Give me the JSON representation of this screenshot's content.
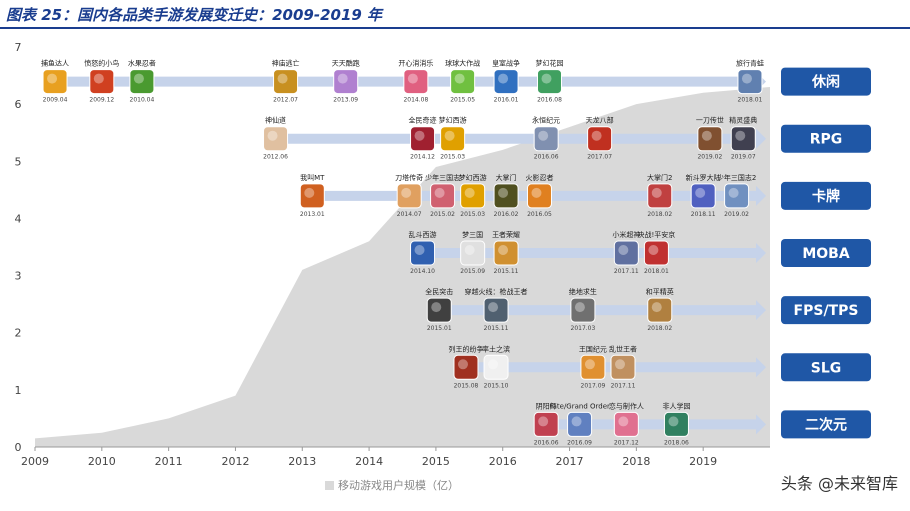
{
  "header": {
    "title": "图表 25：国内各品类手游发展变迁史：2009-2019 年"
  },
  "legend": {
    "label": "移动游戏用户规模（亿）"
  },
  "watermark": {
    "text": "头条 @未来智库"
  },
  "colors": {
    "area": "#d9d9d9",
    "arrow": "#c6d3ea",
    "category_box": "#1f57a6",
    "title": "#1a3d8f"
  },
  "chart_data": {
    "type": "area",
    "title": "图表 25：国内各品类手游发展变迁史：2009-2019 年",
    "legend_position": "bottom",
    "xlim": [
      2009,
      2020
    ],
    "ylim": [
      0,
      7
    ],
    "x_ticks": [
      "2009",
      "2010",
      "2011",
      "2012",
      "2013",
      "2014",
      "2015",
      "2016",
      "2017",
      "2018",
      "2019"
    ],
    "y_ticks": [
      "0",
      "1",
      "2",
      "3",
      "4",
      "5",
      "6",
      "7"
    ],
    "series": [
      {
        "name": "移动游戏用户规模（亿）",
        "x": [
          2009,
          2010,
          2011,
          2012,
          2013,
          2014,
          2015,
          2016,
          2017,
          2018,
          2019,
          2020
        ],
        "y": [
          0.15,
          0.25,
          0.5,
          0.9,
          3.1,
          3.6,
          4.9,
          5.2,
          5.6,
          6.0,
          6.2,
          6.3
        ]
      }
    ],
    "categories": [
      {
        "label": "休闲",
        "y": 6.5,
        "games": [
          {
            "name": "捕鱼达人",
            "date": "2009.04",
            "x": 2009.3,
            "color": "#e8a020"
          },
          {
            "name": "愤怒的小鸟",
            "date": "2009.12",
            "x": 2010.0,
            "color": "#d04020"
          },
          {
            "name": "水果忍者",
            "date": "2010.04",
            "x": 2010.6,
            "color": "#4a9a30"
          },
          {
            "name": "神庙逃亡",
            "date": "2012.07",
            "x": 2012.75,
            "color": "#c89020"
          },
          {
            "name": "天天酷跑",
            "date": "2013.09",
            "x": 2013.65,
            "color": "#b080d0"
          },
          {
            "name": "开心消消乐",
            "date": "2014.08",
            "x": 2014.7,
            "color": "#e06080"
          },
          {
            "name": "球球大作战",
            "date": "2015.05",
            "x": 2015.4,
            "color": "#70c040"
          },
          {
            "name": "皇室战争",
            "date": "2016.01",
            "x": 2016.05,
            "color": "#3070c0"
          },
          {
            "name": "梦幻花园",
            "date": "2016.08",
            "x": 2016.7,
            "color": "#40a060"
          },
          {
            "name": "旅行青蛙",
            "date": "2018.01",
            "x": 2019.7,
            "color": "#6080b0"
          }
        ]
      },
      {
        "label": "RPG",
        "y": 5.5,
        "games": [
          {
            "name": "神仙道",
            "date": "2012.06",
            "x": 2012.6,
            "color": "#e0c0a0"
          },
          {
            "name": "全民奇迹",
            "date": "2014.12",
            "x": 2014.8,
            "color": "#a02030"
          },
          {
            "name": "梦幻西游",
            "date": "2015.03",
            "x": 2015.25,
            "color": "#e0a000"
          },
          {
            "name": "永恒纪元",
            "date": "2016.06",
            "x": 2016.65,
            "color": "#8090b0"
          },
          {
            "name": "天龙八部",
            "date": "2017.07",
            "x": 2017.45,
            "color": "#c03020"
          },
          {
            "name": "一刀传世",
            "date": "2019.02",
            "x": 2019.1,
            "color": "#805030"
          },
          {
            "name": "精灵盛典",
            "date": "2019.07",
            "x": 2019.6,
            "color": "#404050"
          }
        ]
      },
      {
        "label": "卡牌",
        "y": 4.5,
        "games": [
          {
            "name": "我叫MT",
            "date": "2013.01",
            "x": 2013.15,
            "color": "#d06020"
          },
          {
            "name": "刀塔传奇",
            "date": "2014.07",
            "x": 2014.6,
            "color": "#e0a060"
          },
          {
            "name": "少年三国志",
            "date": "2015.02",
            "x": 2015.1,
            "color": "#d06070"
          },
          {
            "name": "梦幻西游",
            "date": "2015.03",
            "x": 2015.55,
            "color": "#e0a000"
          },
          {
            "name": "大掌门",
            "date": "2016.02",
            "x": 2016.05,
            "color": "#505020"
          },
          {
            "name": "火影忍者",
            "date": "2016.05",
            "x": 2016.55,
            "color": "#e08020"
          },
          {
            "name": "大掌门2",
            "date": "2018.02",
            "x": 2018.35,
            "color": "#c04040"
          },
          {
            "name": "新斗罗大陆",
            "date": "2018.11",
            "x": 2019.0,
            "color": "#5060c0"
          },
          {
            "name": "少年三国志2",
            "date": "2019.02",
            "x": 2019.5,
            "color": "#7090c0"
          }
        ]
      },
      {
        "label": "MOBA",
        "y": 3.5,
        "games": [
          {
            "name": "乱斗西游",
            "date": "2014.10",
            "x": 2014.8,
            "color": "#3060b0"
          },
          {
            "name": "梦三国",
            "date": "2015.09",
            "x": 2015.55,
            "color": "#e0e0e0"
          },
          {
            "name": "王者荣耀",
            "date": "2015.11",
            "x": 2016.05,
            "color": "#d09030"
          },
          {
            "name": "小米超神",
            "date": "2017.11",
            "x": 2017.85,
            "color": "#6070a0"
          },
          {
            "name": "决战!平安京",
            "date": "2018.01",
            "x": 2018.3,
            "color": "#c03030"
          }
        ]
      },
      {
        "label": "FPS/TPS",
        "y": 2.5,
        "games": [
          {
            "name": "全民突击",
            "date": "2015.01",
            "x": 2015.05,
            "color": "#404040"
          },
          {
            "name": "穿越火线：枪战王者",
            "date": "2015.11",
            "x": 2015.9,
            "color": "#506070"
          },
          {
            "name": "绝地求生",
            "date": "2017.03",
            "x": 2017.2,
            "color": "#707070"
          },
          {
            "name": "和平精英",
            "date": "2018.02",
            "x": 2018.35,
            "color": "#b08040"
          }
        ]
      },
      {
        "label": "SLG",
        "y": 1.5,
        "games": [
          {
            "name": "列王的纷争",
            "date": "2015.08",
            "x": 2015.45,
            "color": "#a03020"
          },
          {
            "name": "率土之滨",
            "date": "2015.10",
            "x": 2015.9,
            "color": "#f0f0f0"
          },
          {
            "name": "王国纪元",
            "date": "2017.09",
            "x": 2017.35,
            "color": "#e09030"
          },
          {
            "name": "乱世王者",
            "date": "2017.11",
            "x": 2017.8,
            "color": "#c09060"
          }
        ]
      },
      {
        "label": "二次元",
        "y": 0.5,
        "games": [
          {
            "name": "阴阳师",
            "date": "2016.06",
            "x": 2016.65,
            "color": "#c04050"
          },
          {
            "name": "Fate/Grand Order",
            "date": "2016.09",
            "x": 2017.15,
            "color": "#6080c0"
          },
          {
            "name": "恋与制作人",
            "date": "2017.12",
            "x": 2017.85,
            "color": "#e07090"
          },
          {
            "name": "非人学园",
            "date": "2018.06",
            "x": 2018.6,
            "color": "#308060"
          }
        ]
      }
    ]
  }
}
